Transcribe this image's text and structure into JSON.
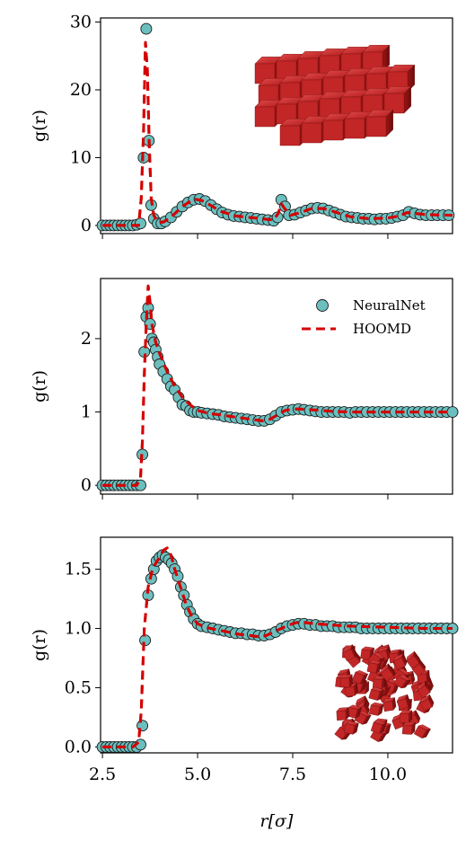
{
  "figure": {
    "xlabel": "r[σ]"
  },
  "chart_data": [
    {
      "type": "scatter",
      "panel": "top",
      "ylabel": "g(r)",
      "xlim": [
        2.45,
        11.7
      ],
      "ylim": [
        -1.2,
        30.6
      ],
      "x_ticks": [
        "2.5",
        "5.0",
        "7.5",
        "10.0"
      ],
      "x_tick_values": [
        2.5,
        5.0,
        7.5,
        10.0
      ],
      "x_tick_labels_shown": false,
      "y_ticks": [
        "0",
        "10",
        "20",
        "30"
      ],
      "y_tick_values": [
        0,
        10,
        20,
        30
      ],
      "inset": "ordered-cube-crystal",
      "series": [
        {
          "marker": "circle",
          "color": "#6cbfbf",
          "x": [
            2.5,
            2.6,
            2.7,
            2.8,
            2.9,
            3.0,
            3.1,
            3.2,
            3.3,
            3.4,
            3.5,
            3.58,
            3.65,
            3.72,
            3.78,
            3.85,
            3.95,
            4.05,
            4.15,
            4.3,
            4.45,
            4.6,
            4.75,
            4.9,
            5.05,
            5.2,
            5.35,
            5.5,
            5.65,
            5.8,
            5.95,
            6.1,
            6.25,
            6.4,
            6.55,
            6.7,
            6.85,
            7.0,
            7.1,
            7.2,
            7.3,
            7.4,
            7.55,
            7.7,
            7.85,
            8.0,
            8.15,
            8.3,
            8.45,
            8.6,
            8.75,
            8.9,
            9.05,
            9.2,
            9.35,
            9.5,
            9.65,
            9.8,
            9.95,
            10.1,
            10.25,
            10.4,
            10.55,
            10.7,
            10.85,
            11.0,
            11.15,
            11.3,
            11.45,
            11.6
          ],
          "y": [
            0,
            0,
            0,
            0,
            0,
            0,
            0,
            0,
            0,
            0.1,
            0.3,
            10.0,
            29.0,
            12.5,
            3.0,
            1.0,
            0.3,
            0.3,
            0.6,
            1.2,
            2.0,
            2.8,
            3.4,
            3.8,
            3.9,
            3.6,
            3.0,
            2.4,
            1.9,
            1.6,
            1.4,
            1.3,
            1.2,
            1.1,
            1.0,
            0.9,
            0.8,
            0.7,
            1.2,
            3.8,
            2.8,
            1.5,
            1.6,
            1.9,
            2.2,
            2.5,
            2.6,
            2.5,
            2.2,
            1.9,
            1.6,
            1.3,
            1.2,
            1.1,
            1.0,
            1.0,
            0.9,
            1.0,
            1.0,
            1.1,
            1.3,
            1.5,
            2.0,
            1.8,
            1.6,
            1.5,
            1.5,
            1.5,
            1.5,
            1.5
          ]
        },
        {
          "marker": "dashed-line",
          "color": "#d40000",
          "x": [
            2.5,
            3.0,
            3.45,
            3.52,
            3.58,
            3.63,
            3.68,
            3.73,
            3.78,
            3.85,
            3.95,
            4.1,
            4.3,
            4.6,
            4.9,
            5.1,
            5.3,
            5.6,
            6.0,
            6.5,
            7.0,
            7.12,
            7.2,
            7.3,
            7.45,
            7.7,
            8.0,
            8.3,
            8.6,
            9.0,
            9.5,
            10.0,
            10.3,
            10.5,
            10.7,
            11.0,
            11.7
          ],
          "y": [
            0,
            0,
            0,
            4.0,
            14.0,
            27.0,
            23.0,
            12.0,
            4.0,
            1.5,
            0.5,
            0.5,
            1.2,
            2.8,
            3.9,
            3.7,
            3.1,
            2.1,
            1.4,
            1.1,
            0.8,
            1.8,
            3.2,
            2.4,
            1.5,
            1.9,
            2.5,
            2.5,
            2.0,
            1.3,
            1.0,
            1.1,
            1.4,
            1.9,
            1.8,
            1.6,
            1.5
          ]
        }
      ]
    },
    {
      "type": "scatter",
      "panel": "middle",
      "ylabel": "g(r)",
      "xlim": [
        2.45,
        11.7
      ],
      "ylim": [
        -0.12,
        2.82
      ],
      "x_ticks": [
        "2.5",
        "5.0",
        "7.5",
        "10.0"
      ],
      "x_tick_values": [
        2.5,
        5.0,
        7.5,
        10.0
      ],
      "x_tick_labels_shown": false,
      "y_ticks": [
        "0",
        "1",
        "2"
      ],
      "y_tick_values": [
        0,
        1,
        2
      ],
      "legend_placement": "top-right",
      "series": [
        {
          "name": "NeuralNet",
          "marker": "circle",
          "color": "#6cbfbf",
          "x": [
            2.5,
            2.6,
            2.7,
            2.8,
            2.9,
            3.0,
            3.1,
            3.2,
            3.3,
            3.4,
            3.5,
            3.55,
            3.6,
            3.65,
            3.7,
            3.75,
            3.8,
            3.85,
            3.9,
            3.95,
            4.0,
            4.1,
            4.2,
            4.3,
            4.4,
            4.5,
            4.6,
            4.7,
            4.8,
            4.9,
            5.0,
            5.1,
            5.25,
            5.4,
            5.55,
            5.7,
            5.85,
            6.0,
            6.15,
            6.3,
            6.45,
            6.6,
            6.75,
            6.9,
            7.05,
            7.2,
            7.35,
            7.5,
            7.65,
            7.8,
            7.95,
            8.1,
            8.25,
            8.4,
            8.55,
            8.7,
            8.85,
            9.0,
            9.15,
            9.3,
            9.45,
            9.6,
            9.75,
            9.9,
            10.05,
            10.2,
            10.35,
            10.5,
            10.65,
            10.8,
            10.95,
            11.1,
            11.25,
            11.4,
            11.55,
            11.7
          ],
          "y": [
            0,
            0,
            0,
            0,
            0,
            0,
            0,
            0,
            0,
            0,
            0,
            0.42,
            1.82,
            2.3,
            2.42,
            2.2,
            2.0,
            1.95,
            1.85,
            1.75,
            1.65,
            1.55,
            1.45,
            1.35,
            1.3,
            1.2,
            1.1,
            1.08,
            1.02,
            1.0,
            1.0,
            0.99,
            0.98,
            0.97,
            0.96,
            0.94,
            0.93,
            0.92,
            0.91,
            0.9,
            0.89,
            0.88,
            0.88,
            0.9,
            0.95,
            1.0,
            1.02,
            1.03,
            1.04,
            1.03,
            1.02,
            1.01,
            1.0,
            1.0,
            1.0,
            1.0,
            1.0,
            0.99,
            1.0,
            1.0,
            1.0,
            1.0,
            1.0,
            1.0,
            1.0,
            1.0,
            1.0,
            1.0,
            1.0,
            1.0,
            1.0,
            1.0,
            1.0,
            1.0,
            1.0,
            1.0
          ]
        },
        {
          "name": "HOOMD",
          "marker": "dashed-line",
          "color": "#d40000",
          "x": [
            2.5,
            3.4,
            3.5,
            3.55,
            3.6,
            3.65,
            3.7,
            3.75,
            3.8,
            3.9,
            4.0,
            4.2,
            4.4,
            4.6,
            4.8,
            5.0,
            5.3,
            5.6,
            6.0,
            6.4,
            6.7,
            6.9,
            7.1,
            7.3,
            7.5,
            7.7,
            8.0,
            8.5,
            9.0,
            10.0,
            11.0,
            11.7
          ],
          "y": [
            0,
            0,
            0.1,
            0.6,
            1.5,
            2.2,
            2.72,
            2.5,
            2.2,
            1.95,
            1.8,
            1.55,
            1.35,
            1.2,
            1.1,
            1.02,
            0.98,
            0.96,
            0.93,
            0.9,
            0.88,
            0.9,
            0.96,
            1.02,
            1.04,
            1.04,
            1.03,
            1.01,
            1.0,
            1.0,
            1.0,
            1.0
          ]
        }
      ]
    },
    {
      "type": "scatter",
      "panel": "bottom",
      "ylabel": "g(r)",
      "xlabel": "r[σ]",
      "xlim": [
        2.45,
        11.7
      ],
      "ylim": [
        -0.05,
        1.77
      ],
      "x_ticks": [
        "2.5",
        "5.0",
        "7.5",
        "10.0"
      ],
      "x_tick_values": [
        2.5,
        5.0,
        7.5,
        10.0
      ],
      "x_tick_labels_shown": true,
      "y_ticks": [
        "0.0",
        "0.5",
        "1.0",
        "1.5"
      ],
      "y_tick_values": [
        0.0,
        0.5,
        1.0,
        1.5
      ],
      "inset": "disordered-cube-fluid",
      "series": [
        {
          "marker": "circle",
          "color": "#6cbfbf",
          "x": [
            2.5,
            2.6,
            2.7,
            2.8,
            2.9,
            3.0,
            3.1,
            3.2,
            3.3,
            3.4,
            3.5,
            3.55,
            3.62,
            3.7,
            3.78,
            3.85,
            3.92,
            4.0,
            4.08,
            4.16,
            4.24,
            4.32,
            4.4,
            4.48,
            4.56,
            4.64,
            4.72,
            4.8,
            4.9,
            5.0,
            5.1,
            5.25,
            5.4,
            5.55,
            5.7,
            5.85,
            6.0,
            6.15,
            6.3,
            6.45,
            6.6,
            6.75,
            6.9,
            7.05,
            7.2,
            7.35,
            7.5,
            7.65,
            7.8,
            7.95,
            8.1,
            8.25,
            8.4,
            8.55,
            8.7,
            8.85,
            9.0,
            9.15,
            9.3,
            9.45,
            9.6,
            9.75,
            9.9,
            10.05,
            10.2,
            10.35,
            10.5,
            10.65,
            10.8,
            10.95,
            11.1,
            11.25,
            11.4,
            11.55,
            11.7
          ],
          "y": [
            0,
            0,
            0,
            0,
            0,
            0,
            0,
            0,
            0,
            0,
            0.02,
            0.18,
            0.9,
            1.28,
            1.42,
            1.5,
            1.57,
            1.6,
            1.62,
            1.6,
            1.58,
            1.55,
            1.5,
            1.44,
            1.35,
            1.28,
            1.2,
            1.14,
            1.08,
            1.04,
            1.02,
            1.01,
            1.0,
            0.99,
            0.98,
            0.97,
            0.96,
            0.96,
            0.95,
            0.95,
            0.94,
            0.94,
            0.95,
            0.97,
            1.0,
            1.02,
            1.03,
            1.04,
            1.04,
            1.03,
            1.03,
            1.02,
            1.02,
            1.02,
            1.01,
            1.01,
            1.01,
            1.01,
            1.0,
            1.0,
            1.0,
            1.0,
            1.0,
            1.0,
            1.0,
            1.0,
            1.0,
            1.0,
            1.0,
            1.0,
            1.0,
            1.0,
            1.0,
            1.0,
            1.0
          ]
        },
        {
          "marker": "dashed-line",
          "color": "#d40000",
          "x": [
            2.5,
            3.3,
            3.45,
            3.52,
            3.6,
            3.7,
            3.8,
            3.9,
            4.0,
            4.1,
            4.2,
            4.3,
            4.4,
            4.55,
            4.7,
            4.85,
            5.0,
            5.2,
            5.5,
            5.8,
            6.1,
            6.4,
            6.6,
            6.8,
            7.0,
            7.2,
            7.4,
            7.6,
            7.8,
            8.1,
            8.5,
            9.0,
            10.0,
            11.0,
            11.7
          ],
          "y": [
            0,
            0,
            0.04,
            0.3,
            1.0,
            1.35,
            1.48,
            1.55,
            1.6,
            1.66,
            1.68,
            1.62,
            1.5,
            1.35,
            1.2,
            1.1,
            1.04,
            1.01,
            0.99,
            0.97,
            0.95,
            0.94,
            0.93,
            0.94,
            0.97,
            1.0,
            1.03,
            1.05,
            1.05,
            1.04,
            1.03,
            1.02,
            1.01,
            1.0,
            1.0
          ]
        }
      ]
    }
  ]
}
